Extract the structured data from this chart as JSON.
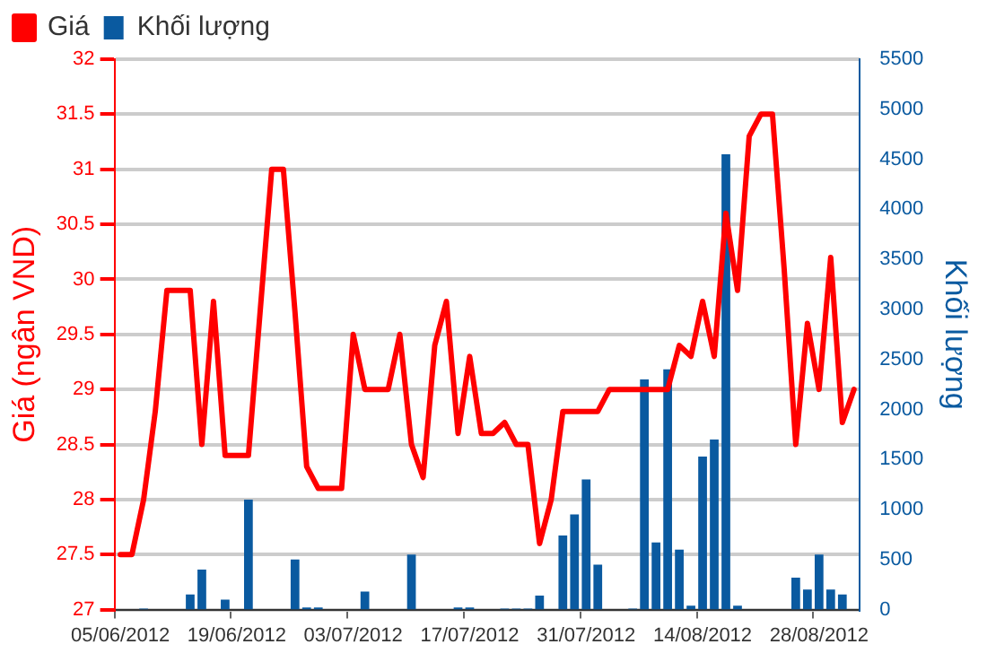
{
  "chart_data": {
    "type": "bar",
    "xlabel": null,
    "ylabel": "Giá (ngân VND)",
    "y2label": "Khối lượng",
    "categories": [
      "05/06/2012",
      null,
      null,
      null,
      null,
      null,
      null,
      null,
      null,
      null,
      "19/06/2012",
      null,
      null,
      null,
      null,
      null,
      null,
      null,
      null,
      null,
      "03/07/2012",
      null,
      null,
      null,
      null,
      null,
      null,
      null,
      null,
      null,
      "17/07/2012",
      null,
      null,
      null,
      null,
      null,
      null,
      null,
      null,
      null,
      "31/07/2012",
      null,
      null,
      null,
      null,
      null,
      null,
      null,
      null,
      null,
      "14/08/2012",
      null,
      null,
      null,
      null,
      null,
      null,
      null,
      null,
      null,
      "28/08/2012",
      null,
      null,
      null
    ],
    "series": [
      {
        "name": "Giá",
        "type": "line",
        "color": "#ff0000",
        "values": [
          27.5,
          27.5,
          28.0,
          28.8,
          29.9,
          29.9,
          29.9,
          28.5,
          29.8,
          28.4,
          28.4,
          28.4,
          29.7,
          31.0,
          31.0,
          29.7,
          28.3,
          28.1,
          28.1,
          28.1,
          29.5,
          29.0,
          29.0,
          29.0,
          29.5,
          28.5,
          28.2,
          29.4,
          29.8,
          28.6,
          29.3,
          28.6,
          28.6,
          28.7,
          28.5,
          28.5,
          27.6,
          28.0,
          28.8,
          28.8,
          28.8,
          28.8,
          29.0,
          29.0,
          29.0,
          29.0,
          29.0,
          29.0,
          29.4,
          29.3,
          29.8,
          29.3,
          30.6,
          29.9,
          31.3,
          31.5,
          31.5,
          30.1,
          28.5,
          29.6,
          29.0,
          30.2,
          28.7,
          29.0
        ]
      },
      {
        "name": "Khối lượng",
        "axis": "y2",
        "color": "#0a5aa0",
        "values": [
          0,
          0,
          10,
          0,
          0,
          0,
          150,
          400,
          0,
          100,
          0,
          1100,
          0,
          0,
          0,
          500,
          20,
          20,
          0,
          0,
          0,
          180,
          0,
          0,
          0,
          550,
          0,
          0,
          0,
          20,
          20,
          0,
          0,
          10,
          10,
          10,
          140,
          0,
          740,
          950,
          1300,
          450,
          0,
          0,
          10,
          2300,
          670,
          2400,
          600,
          40,
          1530,
          1700,
          4550,
          40,
          0,
          0,
          0,
          0,
          320,
          200,
          550,
          200,
          150,
          0
        ]
      }
    ],
    "ylim": [
      27,
      32
    ],
    "yticks": [
      27,
      27.5,
      28,
      28.5,
      29,
      29.5,
      30,
      30.5,
      31,
      31.5,
      32
    ],
    "y2lim": [
      0,
      5500
    ],
    "y2ticks": [
      0,
      500,
      1000,
      1500,
      2000,
      2500,
      3000,
      3500,
      4000,
      4500,
      5000,
      5500
    ],
    "grid": "y",
    "legend": "top left",
    "marker": "none",
    "line_style": "solid"
  }
}
